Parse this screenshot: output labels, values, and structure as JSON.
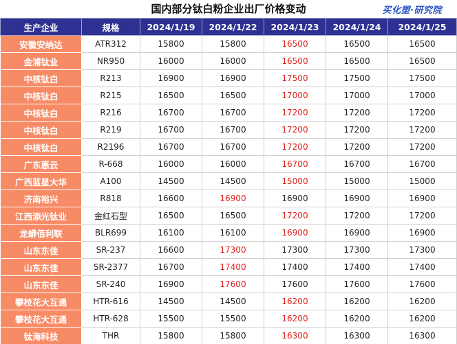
{
  "title": "国内部分钛白粉企业出厂价格变动",
  "brand": "买化塑·研究院",
  "colors": {
    "header_bg": "#2e3192",
    "company_bg": "#f78b66",
    "changed_price": "#e0201c"
  },
  "table": {
    "headers": [
      "生产企业",
      "规格",
      "2024/1/19",
      "2024/1/22",
      "2024/1/23",
      "2024/1/24",
      "2024/1/25"
    ],
    "rows": [
      {
        "company": "安徽安纳达",
        "spec": "ATR312",
        "prices": [
          "15800",
          "15800",
          "16500",
          "16500",
          "16500"
        ],
        "changed": [
          false,
          false,
          true,
          false,
          false
        ]
      },
      {
        "company": "金浦钛业",
        "spec": "NR950",
        "prices": [
          "16000",
          "16000",
          "16500",
          "16500",
          "16500"
        ],
        "changed": [
          false,
          false,
          true,
          false,
          false
        ]
      },
      {
        "company": "中核钛白",
        "spec": "R213",
        "prices": [
          "16900",
          "16900",
          "17500",
          "17500",
          "17500"
        ],
        "changed": [
          false,
          false,
          true,
          false,
          false
        ]
      },
      {
        "company": "中核钛白",
        "spec": "R215",
        "prices": [
          "16500",
          "16500",
          "17000",
          "17000",
          "17000"
        ],
        "changed": [
          false,
          false,
          true,
          false,
          false
        ]
      },
      {
        "company": "中核钛白",
        "spec": "R216",
        "prices": [
          "16700",
          "16700",
          "17200",
          "17200",
          "17200"
        ],
        "changed": [
          false,
          false,
          true,
          false,
          false
        ]
      },
      {
        "company": "中核钛白",
        "spec": "R219",
        "prices": [
          "16700",
          "16700",
          "17200",
          "17200",
          "17200"
        ],
        "changed": [
          false,
          false,
          true,
          false,
          false
        ]
      },
      {
        "company": "中核钛白",
        "spec": "R2196",
        "prices": [
          "16700",
          "16700",
          "17200",
          "17200",
          "17200"
        ],
        "changed": [
          false,
          false,
          true,
          false,
          false
        ]
      },
      {
        "company": "广东惠云",
        "spec": "R-668",
        "prices": [
          "16000",
          "16000",
          "16700",
          "16700",
          "16700"
        ],
        "changed": [
          false,
          false,
          true,
          false,
          false
        ]
      },
      {
        "company": "广西蓝星大华",
        "spec": "A100",
        "prices": [
          "14500",
          "14500",
          "15000",
          "15000",
          "15000"
        ],
        "changed": [
          false,
          false,
          true,
          false,
          false
        ]
      },
      {
        "company": "济南裕兴",
        "spec": "R818",
        "prices": [
          "16600",
          "16900",
          "16900",
          "16900",
          "16900"
        ],
        "changed": [
          false,
          true,
          false,
          false,
          false
        ]
      },
      {
        "company": "江西添光钛业",
        "spec": "金红石型",
        "prices": [
          "16500",
          "16500",
          "17200",
          "17200",
          "17200"
        ],
        "changed": [
          false,
          false,
          true,
          false,
          false
        ]
      },
      {
        "company": "龙蟒佰利联",
        "spec": "BLR699",
        "prices": [
          "16100",
          "16100",
          "16900",
          "16900",
          "16900"
        ],
        "changed": [
          false,
          false,
          true,
          false,
          false
        ]
      },
      {
        "company": "山东东佳",
        "spec": "SR-237",
        "prices": [
          "16600",
          "17300",
          "17300",
          "17300",
          "17300"
        ],
        "changed": [
          false,
          true,
          false,
          false,
          false
        ]
      },
      {
        "company": "山东东佳",
        "spec": "SR-2377",
        "prices": [
          "16700",
          "17400",
          "17400",
          "17400",
          "17400"
        ],
        "changed": [
          false,
          true,
          false,
          false,
          false
        ]
      },
      {
        "company": "山东东佳",
        "spec": "SR-240",
        "prices": [
          "16900",
          "17600",
          "17600",
          "17600",
          "17600"
        ],
        "changed": [
          false,
          true,
          false,
          false,
          false
        ]
      },
      {
        "company": "攀枝花大互通",
        "spec": "HTR-616",
        "prices": [
          "14500",
          "14500",
          "16200",
          "16200",
          "16200"
        ],
        "changed": [
          false,
          false,
          true,
          false,
          false
        ]
      },
      {
        "company": "攀枝花大互通",
        "spec": "HTR-628",
        "prices": [
          "15500",
          "15500",
          "16200",
          "16200",
          "16200"
        ],
        "changed": [
          false,
          false,
          true,
          false,
          false
        ]
      },
      {
        "company": "钛海科技",
        "spec": "THR",
        "prices": [
          "15800",
          "15800",
          "16300",
          "16300",
          "16300"
        ],
        "changed": [
          false,
          false,
          true,
          false,
          false
        ]
      }
    ]
  }
}
